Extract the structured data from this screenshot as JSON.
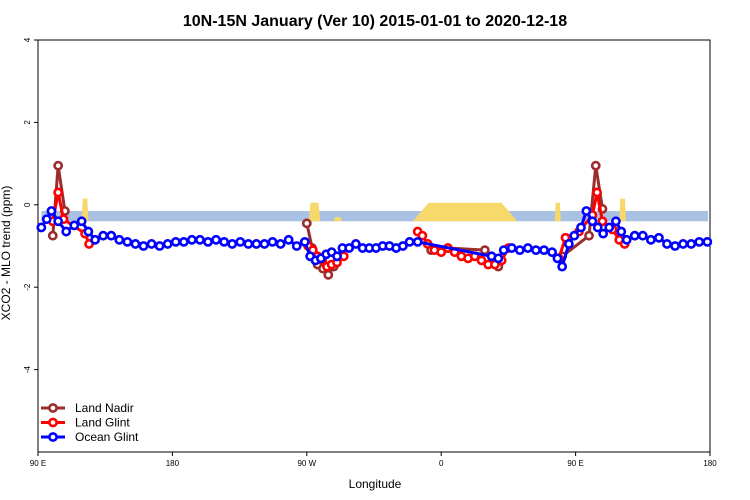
{
  "chart_data": {
    "type": "line",
    "title": "10N-15N January (Ver 10)   2015-01-01 to 2020-12-18",
    "xlabel": "Longitude",
    "ylabel": "XCO2 - MLO trend (ppm)",
    "xlim": [
      0,
      100
    ],
    "ylim": [
      -6,
      4
    ],
    "x_ticks": [
      {
        "pos": 0,
        "label": "90 E"
      },
      {
        "pos": 20,
        "label": "180"
      },
      {
        "pos": 40,
        "label": "90 W"
      },
      {
        "pos": 60,
        "label": "0"
      },
      {
        "pos": 80,
        "label": "90 E"
      },
      {
        "pos": 100,
        "label": "180"
      }
    ],
    "y_ticks": [
      -4,
      -2,
      0,
      2,
      4
    ],
    "legend_position": "bottom-left",
    "land_band": {
      "y_range": [
        -0.4,
        -0.15
      ],
      "ocean_color": "#a9c1e3",
      "land_color": "#f7d96b",
      "land_segments": [
        {
          "x0": 6.5,
          "x1": 7.5,
          "top": 0.15
        },
        {
          "x0": 40.3,
          "x1": 42.0,
          "top": 0.05
        },
        {
          "x0": 44.0,
          "x1": 45.2,
          "top": -0.3
        },
        {
          "x0": 55.8,
          "x1": 71.3,
          "top": 0.05
        },
        {
          "x0": 76.9,
          "x1": 77.8,
          "top": 0.05
        },
        {
          "x0": 86.5,
          "x1": 87.5,
          "top": 0.15
        }
      ]
    },
    "series": [
      {
        "name": "Land Nadir",
        "color": "#9b2d2d",
        "segments": [
          [
            [
              2.2,
              -0.75
            ],
            [
              3.0,
              0.95
            ],
            [
              4.0,
              -0.15
            ]
          ],
          [
            [
              40.0,
              -0.45
            ],
            [
              40.8,
              -1.05
            ],
            [
              41.6,
              -1.45
            ],
            [
              42.4,
              -1.55
            ],
            [
              43.2,
              -1.7
            ],
            [
              44.0,
              -1.5
            ]
          ],
          [
            [
              58.5,
              -1.1
            ],
            [
              61.0,
              -1.05
            ],
            [
              66.5,
              -1.1
            ],
            [
              68.5,
              -1.5
            ]
          ],
          [
            [
              78.0,
              -1.25
            ],
            [
              82.0,
              -0.75
            ],
            [
              83.0,
              0.95
            ],
            [
              84.0,
              -0.1
            ]
          ]
        ]
      },
      {
        "name": "Land Glint",
        "color": "#ff0000",
        "segments": [
          [
            [
              2.2,
              -0.4
            ],
            [
              3.0,
              0.3
            ],
            [
              3.8,
              -0.35
            ],
            [
              7.0,
              -0.7
            ],
            [
              7.6,
              -0.95
            ]
          ],
          [
            [
              40.2,
              -1.0
            ],
            [
              40.9,
              -1.1
            ],
            [
              41.6,
              -1.25
            ],
            [
              42.3,
              -1.35
            ],
            [
              43.0,
              -1.5
            ],
            [
              43.7,
              -1.45
            ],
            [
              44.5,
              -1.4
            ],
            [
              45.5,
              -1.25
            ]
          ],
          [
            [
              56.5,
              -0.65
            ],
            [
              57.2,
              -0.75
            ],
            [
              58.0,
              -0.95
            ],
            [
              59.0,
              -1.1
            ],
            [
              60.0,
              -1.15
            ],
            [
              61.0,
              -1.05
            ],
            [
              62.0,
              -1.15
            ],
            [
              63.0,
              -1.25
            ],
            [
              64.0,
              -1.3
            ],
            [
              65.0,
              -1.25
            ],
            [
              66.0,
              -1.35
            ],
            [
              67.0,
              -1.45
            ],
            [
              68.0,
              -1.45
            ],
            [
              69.0,
              -1.35
            ],
            [
              70.0,
              -1.05
            ]
          ],
          [
            [
              77.5,
              -1.3
            ],
            [
              78.5,
              -0.8
            ],
            [
              80.5,
              -0.65
            ],
            [
              82.5,
              -0.25
            ],
            [
              83.2,
              0.3
            ],
            [
              84.0,
              -0.4
            ],
            [
              85.5,
              -0.6
            ],
            [
              86.5,
              -0.85
            ],
            [
              87.3,
              -0.95
            ]
          ]
        ]
      },
      {
        "name": "Ocean Glint",
        "color": "#0000ff",
        "segments": [
          [
            [
              0.5,
              -0.55
            ],
            [
              1.3,
              -0.35
            ],
            [
              2.0,
              -0.15
            ],
            [
              3.0,
              -0.4
            ],
            [
              4.2,
              -0.65
            ],
            [
              5.4,
              -0.5
            ],
            [
              6.5,
              -0.4
            ],
            [
              7.5,
              -0.65
            ],
            [
              8.5,
              -0.85
            ],
            [
              9.7,
              -0.75
            ],
            [
              10.9,
              -0.75
            ],
            [
              12.1,
              -0.85
            ],
            [
              13.3,
              -0.9
            ],
            [
              14.5,
              -0.95
            ],
            [
              15.7,
              -1.0
            ],
            [
              16.9,
              -0.95
            ],
            [
              18.1,
              -1.0
            ],
            [
              19.3,
              -0.95
            ],
            [
              20.5,
              -0.9
            ],
            [
              21.7,
              -0.9
            ],
            [
              22.9,
              -0.85
            ],
            [
              24.1,
              -0.85
            ],
            [
              25.3,
              -0.9
            ],
            [
              26.5,
              -0.85
            ],
            [
              27.7,
              -0.9
            ],
            [
              28.9,
              -0.95
            ],
            [
              30.1,
              -0.9
            ],
            [
              31.3,
              -0.95
            ],
            [
              32.5,
              -0.95
            ],
            [
              33.7,
              -0.95
            ],
            [
              34.9,
              -0.9
            ],
            [
              36.1,
              -0.95
            ],
            [
              37.3,
              -0.85
            ],
            [
              38.5,
              -1.0
            ],
            [
              39.7,
              -0.9
            ],
            [
              40.5,
              -1.25
            ],
            [
              41.3,
              -1.35
            ],
            [
              42.1,
              -1.3
            ],
            [
              42.9,
              -1.2
            ],
            [
              43.7,
              -1.15
            ],
            [
              44.5,
              -1.25
            ],
            [
              45.3,
              -1.05
            ],
            [
              46.3,
              -1.05
            ],
            [
              47.3,
              -0.95
            ],
            [
              48.3,
              -1.05
            ],
            [
              49.3,
              -1.05
            ],
            [
              50.3,
              -1.05
            ],
            [
              51.3,
              -1.0
            ],
            [
              52.3,
              -1.0
            ],
            [
              53.3,
              -1.05
            ],
            [
              54.3,
              -1.0
            ],
            [
              55.3,
              -0.9
            ],
            [
              56.5,
              -0.9
            ],
            [
              67.5,
              -1.25
            ],
            [
              68.5,
              -1.3
            ],
            [
              69.3,
              -1.1
            ],
            [
              70.5,
              -1.05
            ],
            [
              71.7,
              -1.1
            ],
            [
              72.9,
              -1.05
            ],
            [
              74.1,
              -1.1
            ],
            [
              75.3,
              -1.1
            ],
            [
              76.5,
              -1.15
            ],
            [
              77.3,
              -1.3
            ],
            [
              78.0,
              -1.5
            ],
            [
              79.0,
              -0.95
            ],
            [
              79.8,
              -0.75
            ],
            [
              80.8,
              -0.55
            ],
            [
              81.6,
              -0.15
            ],
            [
              82.5,
              -0.4
            ],
            [
              83.3,
              -0.55
            ],
            [
              84.1,
              -0.7
            ],
            [
              85.0,
              -0.55
            ],
            [
              86.0,
              -0.4
            ],
            [
              86.8,
              -0.65
            ],
            [
              87.6,
              -0.85
            ],
            [
              88.8,
              -0.75
            ],
            [
              90.0,
              -0.75
            ],
            [
              91.2,
              -0.85
            ],
            [
              92.4,
              -0.8
            ],
            [
              93.6,
              -0.95
            ],
            [
              94.8,
              -1.0
            ],
            [
              96.0,
              -0.95
            ],
            [
              97.2,
              -0.95
            ],
            [
              98.4,
              -0.9
            ],
            [
              99.6,
              -0.9
            ]
          ]
        ]
      }
    ]
  }
}
